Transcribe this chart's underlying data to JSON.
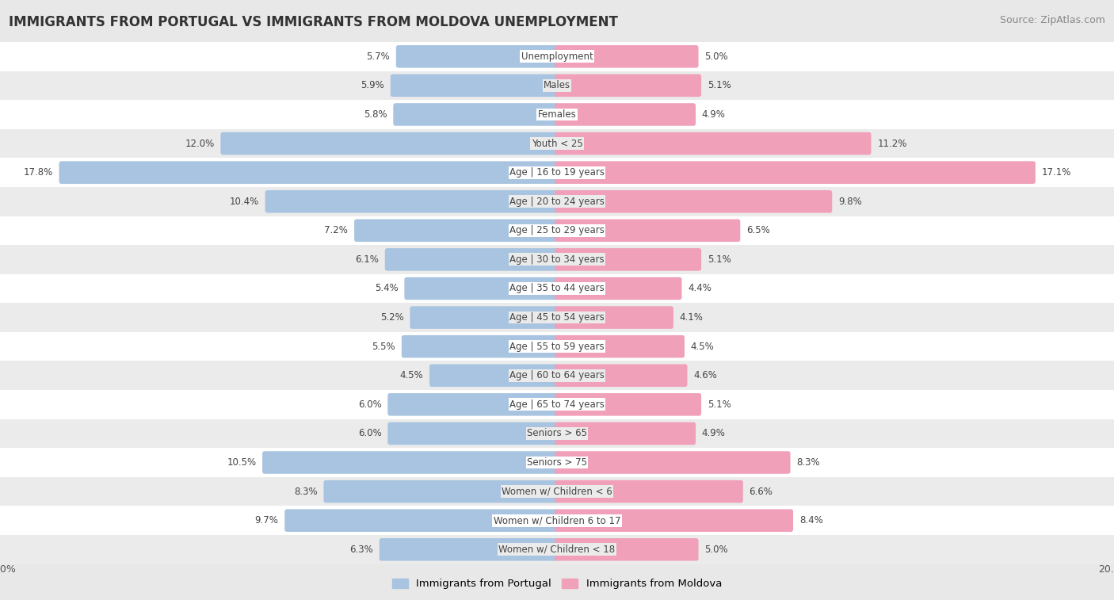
{
  "title": "IMMIGRANTS FROM PORTUGAL VS IMMIGRANTS FROM MOLDOVA UNEMPLOYMENT",
  "source": "Source: ZipAtlas.com",
  "categories": [
    "Unemployment",
    "Males",
    "Females",
    "Youth < 25",
    "Age | 16 to 19 years",
    "Age | 20 to 24 years",
    "Age | 25 to 29 years",
    "Age | 30 to 34 years",
    "Age | 35 to 44 years",
    "Age | 45 to 54 years",
    "Age | 55 to 59 years",
    "Age | 60 to 64 years",
    "Age | 65 to 74 years",
    "Seniors > 65",
    "Seniors > 75",
    "Women w/ Children < 6",
    "Women w/ Children 6 to 17",
    "Women w/ Children < 18"
  ],
  "portugal_values": [
    5.7,
    5.9,
    5.8,
    12.0,
    17.8,
    10.4,
    7.2,
    6.1,
    5.4,
    5.2,
    5.5,
    4.5,
    6.0,
    6.0,
    10.5,
    8.3,
    9.7,
    6.3
  ],
  "moldova_values": [
    5.0,
    5.1,
    4.9,
    11.2,
    17.1,
    9.8,
    6.5,
    5.1,
    4.4,
    4.1,
    4.5,
    4.6,
    5.1,
    4.9,
    8.3,
    6.6,
    8.4,
    5.0
  ],
  "portugal_color": "#a8c4e0",
  "moldova_color": "#f0a0b8",
  "background_color": "#e8e8e8",
  "row_bg_even": "#ffffff",
  "row_bg_odd": "#ebebeb",
  "axis_limit": 20.0,
  "legend_portugal": "Immigrants from Portugal",
  "legend_moldova": "Immigrants from Moldova",
  "title_fontsize": 12,
  "source_fontsize": 9,
  "label_fontsize": 8.5,
  "category_fontsize": 8.5
}
